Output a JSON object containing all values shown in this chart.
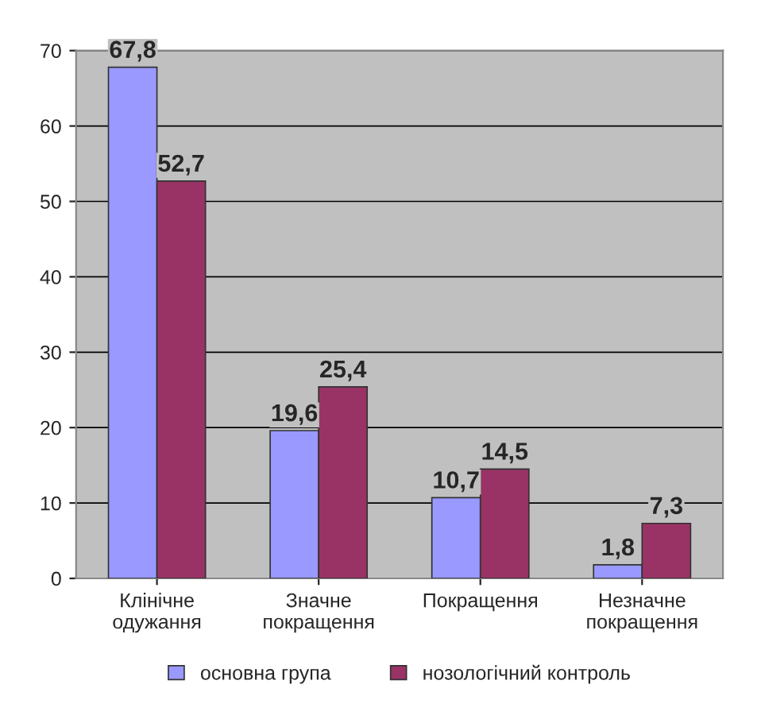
{
  "chart_data": {
    "type": "bar",
    "categories": [
      "Клінічне\nодужання",
      "Значне\nпокращення",
      "Покращення",
      "Незначне\nпокращення"
    ],
    "series": [
      {
        "name": "основна група",
        "color": "#9999ff",
        "values": [
          67.8,
          19.6,
          10.7,
          1.8
        ],
        "value_labels": [
          "67,8",
          "19,6",
          "10,7",
          "1,8"
        ]
      },
      {
        "name": "нозологічний контроль",
        "color": "#993366",
        "values": [
          52.7,
          25.4,
          14.5,
          7.3
        ],
        "value_labels": [
          "52,7",
          "25,4",
          "14,5",
          "7,3"
        ]
      }
    ],
    "ylim": [
      0,
      70
    ],
    "yticks": [
      0,
      10,
      20,
      30,
      40,
      50,
      60,
      70
    ],
    "grid": "y",
    "legend": "bottom"
  }
}
